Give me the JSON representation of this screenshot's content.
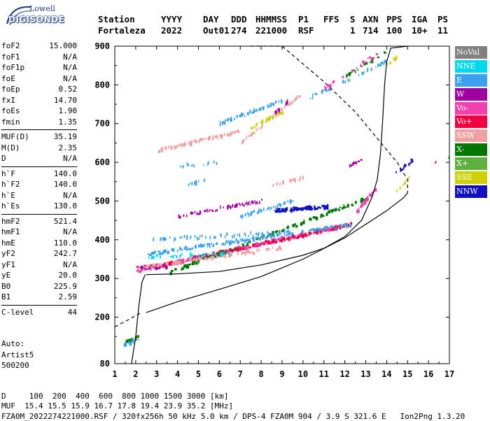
{
  "logo": {
    "top": "Lowell",
    "main": "DIGISONDE"
  },
  "header": {
    "labels": [
      "Station",
      "YYYY",
      "DAY",
      "DDD",
      "HHMMSS",
      "P1",
      "FFS",
      "S",
      "AXN",
      "PPS",
      "IGA",
      "PS"
    ],
    "values": [
      "Fortaleza",
      "2022",
      "Out01",
      "274",
      "221000",
      "RSF",
      "",
      "1",
      "714",
      "100",
      "10+",
      "11"
    ]
  },
  "params": [
    {
      "group": 1,
      "name": "foF2",
      "value": "15.000"
    },
    {
      "group": 1,
      "name": "foF1",
      "value": "N/A"
    },
    {
      "group": 1,
      "name": "foF1p",
      "value": "N/A"
    },
    {
      "group": 1,
      "name": "foE",
      "value": "N/A"
    },
    {
      "group": 1,
      "name": "foEp",
      "value": "0.52"
    },
    {
      "group": 1,
      "name": "fxI",
      "value": "14.70"
    },
    {
      "group": 1,
      "name": "foEs",
      "value": "1.90"
    },
    {
      "group": 1,
      "name": "fmin",
      "value": "1.35"
    },
    {
      "group": 2,
      "name": "MUF(D)",
      "value": "35.19"
    },
    {
      "group": 2,
      "name": "M(D)",
      "value": "2.35"
    },
    {
      "group": 2,
      "name": "D",
      "value": "N/A"
    },
    {
      "group": 3,
      "name": "h`F",
      "value": "140.0"
    },
    {
      "group": 3,
      "name": "h`F2",
      "value": "140.0"
    },
    {
      "group": 3,
      "name": "h`E",
      "value": "N/A"
    },
    {
      "group": 3,
      "name": "h`Es",
      "value": "130.0"
    },
    {
      "group": 4,
      "name": "hmF2",
      "value": "521.4"
    },
    {
      "group": 4,
      "name": "hmF1",
      "value": "N/A"
    },
    {
      "group": 4,
      "name": "hmE",
      "value": "110.0"
    },
    {
      "group": 4,
      "name": "yF2",
      "value": "242.7"
    },
    {
      "group": 4,
      "name": "yF1",
      "value": "N/A"
    },
    {
      "group": 4,
      "name": "yE",
      "value": "20.0"
    },
    {
      "group": 4,
      "name": "B0",
      "value": "225.9"
    },
    {
      "group": 4,
      "name": "B1",
      "value": "2.59"
    },
    {
      "group": 5,
      "name": "C-level",
      "value": "44"
    }
  ],
  "auto": [
    "Auto:",
    "Artist5",
    "500200"
  ],
  "legend": [
    {
      "label": "NoVal",
      "color": "#808080"
    },
    {
      "label": "NNE",
      "color": "#00d8f0"
    },
    {
      "label": "E",
      "color": "#3ca0f0"
    },
    {
      "label": "W",
      "color": "#a000a0"
    },
    {
      "label": "Vo-",
      "color": "#f040b0"
    },
    {
      "label": "Vo+",
      "color": "#f00040"
    },
    {
      "label": "SSW",
      "color": "#f0a0a0"
    },
    {
      "label": "X-",
      "color": "#007800"
    },
    {
      "label": "X+",
      "color": "#60b040"
    },
    {
      "label": "SSE",
      "color": "#d0d000"
    },
    {
      "label": "NNW",
      "color": "#1010c0"
    }
  ],
  "footer": {
    "d_line": "D     100  200  400  600  800 1000 1500 3000 [km]",
    "muf_line": "MUF  15.4 15.5 15.9 16.7 17.8 19.4 23.9 35.2 [MHz]",
    "file_line": "FZA0M_2022274221000.RSF / 320fx256h 50 kHz 5.0 km / DPS-4 FZA0M 904 / 3.9 S 321.6 E   Ion2Png 1.3.20"
  },
  "chart_data": {
    "type": "scatter",
    "xlim": [
      1,
      17
    ],
    "ylim": [
      80,
      900
    ],
    "xticks": [
      1,
      2,
      3,
      4,
      5,
      6,
      7,
      8,
      9,
      10,
      11,
      12,
      13,
      14,
      15,
      16,
      17
    ],
    "yticks": [
      80,
      200,
      300,
      400,
      500,
      600,
      700,
      800,
      900
    ],
    "grid": false,
    "legend_position": "right",
    "traces": [
      {
        "style": "virtual_height_trace",
        "points": [
          [
            2.5,
            310
          ],
          [
            4,
            312
          ],
          [
            6,
            318
          ],
          [
            8,
            335
          ],
          [
            10,
            360
          ],
          [
            11,
            378
          ],
          [
            12,
            408
          ],
          [
            12.8,
            450
          ],
          [
            13.3,
            510
          ],
          [
            13.55,
            555
          ],
          [
            13.7,
            620
          ],
          [
            13.8,
            700
          ],
          [
            13.9,
            800
          ],
          [
            14,
            860
          ],
          [
            14.2,
            895
          ],
          [
            15,
            900
          ]
        ]
      },
      {
        "style": "low_height_trace",
        "points": [
          [
            1.8,
            80
          ],
          [
            2.0,
            150
          ],
          [
            2.15,
            230
          ],
          [
            2.3,
            290
          ],
          [
            2.45,
            310
          ]
        ]
      },
      {
        "style": "true_height_profile",
        "points": [
          [
            2.5,
            212
          ],
          [
            4,
            240
          ],
          [
            6,
            272
          ],
          [
            8,
            305
          ],
          [
            10,
            350
          ],
          [
            12,
            405
          ],
          [
            13,
            440
          ],
          [
            14,
            475
          ],
          [
            14.8,
            508
          ],
          [
            15,
            521
          ]
        ]
      },
      {
        "style": "dashed_model_left",
        "points": [
          [
            1,
            175
          ],
          [
            1.6,
            192
          ],
          [
            2.2,
            210
          ]
        ]
      },
      {
        "style": "dashed_model_right",
        "points": [
          [
            7.5,
            900
          ],
          [
            9,
            900
          ],
          [
            11,
            808
          ],
          [
            12.5,
            730
          ],
          [
            13.5,
            665
          ],
          [
            14.5,
            600
          ],
          [
            15,
            555
          ],
          [
            15,
            521
          ]
        ]
      }
    ],
    "echo_bands": [
      {
        "color_key": "Vo-",
        "x": [
          2,
          11.8
        ],
        "y": [
          320,
          434
        ],
        "count": 260,
        "width": 0.09
      },
      {
        "color_key": "Vo+",
        "x": [
          2.2,
          12.3
        ],
        "y": [
          322,
          440
        ],
        "count": 150,
        "width": 0.09
      },
      {
        "color_key": "W",
        "x": [
          2,
          3.5
        ],
        "y": [
          330,
          330
        ],
        "count": 30,
        "width": 0.09
      },
      {
        "color_key": "SSW",
        "x": [
          2,
          9
        ],
        "y": [
          326,
          380
        ],
        "count": 90,
        "width": 0.09
      },
      {
        "color_key": "X-",
        "x": [
          3.6,
          13.2
        ],
        "y": [
          316,
          510
        ],
        "count": 110,
        "width": 0.09
      },
      {
        "color_key": "E",
        "x": [
          2.5,
          12.5
        ],
        "y": [
          362,
          440
        ],
        "count": 170,
        "width": 0.07
      },
      {
        "color_key": "E",
        "x": [
          2.8,
          9.5
        ],
        "y": [
          400,
          420
        ],
        "count": 70,
        "width": 0.05
      },
      {
        "color_key": "NNE",
        "x": [
          2.5,
          6.5
        ],
        "y": [
          355,
          365
        ],
        "count": 40,
        "width": 0.05
      },
      {
        "color_key": "NNW",
        "x": [
          8.6,
          11.2
        ],
        "y": [
          475,
          485
        ],
        "count": 70,
        "width": 0.1
      },
      {
        "color_key": "W",
        "x": [
          4,
          8
        ],
        "y": [
          460,
          500
        ],
        "count": 70,
        "width": 0.05
      },
      {
        "color_key": "E",
        "x": [
          7,
          9.5
        ],
        "y": [
          460,
          500
        ],
        "count": 60,
        "width": 0.04
      },
      {
        "color_key": "Vo-",
        "x": [
          12.5,
          13.5
        ],
        "y": [
          470,
          535
        ],
        "count": 30,
        "width": 0.08
      },
      {
        "color_key": "SSW",
        "x": [
          3,
          7
        ],
        "y": [
          630,
          680
        ],
        "count": 90,
        "width": 0.06
      },
      {
        "color_key": "SSW",
        "x": [
          7,
          10
        ],
        "y": [
          650,
          780
        ],
        "count": 70,
        "width": 0.05
      },
      {
        "color_key": "E",
        "x": [
          6,
          9
        ],
        "y": [
          700,
          760
        ],
        "count": 70,
        "width": 0.05
      },
      {
        "color_key": "SSE",
        "x": [
          7.5,
          9
        ],
        "y": [
          690,
          730
        ],
        "count": 40,
        "width": 0.06
      },
      {
        "color_key": "W",
        "x": [
          8.5,
          9.3
        ],
        "y": [
          720,
          760
        ],
        "count": 15,
        "width": 0.06
      },
      {
        "color_key": "E",
        "x": [
          10,
          14
        ],
        "y": [
          760,
          860
        ],
        "count": 40,
        "width": 0.06
      },
      {
        "color_key": "X-",
        "x": [
          12,
          14
        ],
        "y": [
          820,
          890
        ],
        "count": 20,
        "width": 0.08
      },
      {
        "color_key": "Vo-",
        "x": [
          11,
          13.5
        ],
        "y": [
          790,
          880
        ],
        "count": 20,
        "width": 0.08
      },
      {
        "color_key": "SSE",
        "x": [
          14,
          14.6
        ],
        "y": [
          850,
          880
        ],
        "count": 10,
        "width": 0.08
      },
      {
        "color_key": "X-",
        "x": [
          1.4,
          2.1
        ],
        "y": [
          130,
          150
        ],
        "count": 20,
        "width": 0.08
      },
      {
        "color_key": "E",
        "x": [
          1.4,
          2.1
        ],
        "y": [
          125,
          145
        ],
        "count": 20,
        "width": 0.06
      },
      {
        "color_key": "W",
        "x": [
          12.2,
          12.8
        ],
        "y": [
          590,
          610
        ],
        "count": 10,
        "width": 0.08
      },
      {
        "color_key": "NNW",
        "x": [
          14.4,
          15.3
        ],
        "y": [
          570,
          610
        ],
        "count": 15,
        "width": 0.06
      },
      {
        "color_key": "SSE",
        "x": [
          14.4,
          15.1
        ],
        "y": [
          520,
          560
        ],
        "count": 8,
        "width": 0.06
      },
      {
        "color_key": "SSW",
        "x": [
          8.5,
          10
        ],
        "y": [
          540,
          560
        ],
        "count": 25,
        "width": 0.05
      },
      {
        "color_key": "E",
        "x": [
          4.5,
          5.5
        ],
        "y": [
          540,
          560
        ],
        "count": 15,
        "width": 0.05
      },
      {
        "color_key": "E",
        "x": [
          4,
          6
        ],
        "y": [
          590,
          600
        ],
        "count": 15,
        "width": 0.05
      },
      {
        "color_key": "X-",
        "x": [
          16.9,
          17
        ],
        "y": [
          610,
          620
        ],
        "count": 2,
        "width": 0.05
      },
      {
        "color_key": "Vo+",
        "x": [
          16.3,
          16.4
        ],
        "y": [
          600,
          605
        ],
        "count": 2,
        "width": 0.05
      }
    ]
  }
}
